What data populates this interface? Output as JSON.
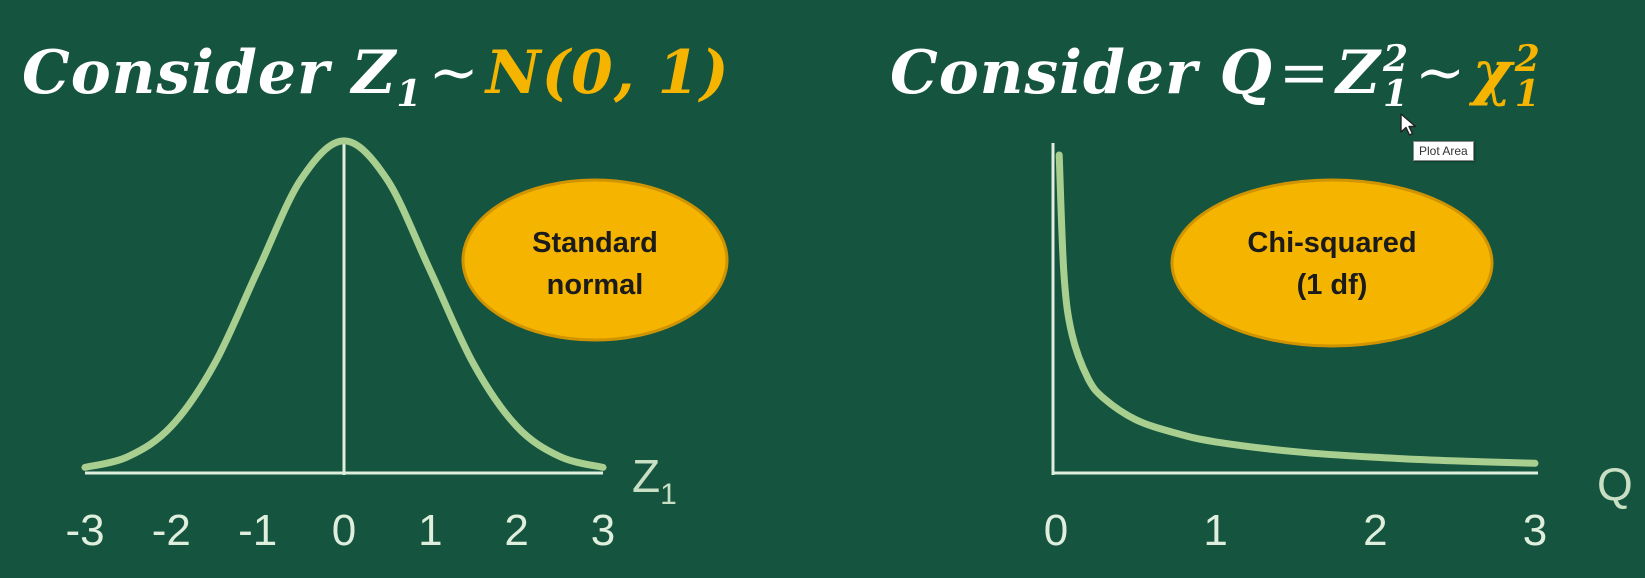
{
  "titles": {
    "left": {
      "prefix": "Consider ",
      "var": "Z",
      "sub": "1",
      "op": "~",
      "dist": "N(0, 1)"
    },
    "right": {
      "prefix": "Consider ",
      "var": "Q",
      "eq": "=",
      "z": "Z",
      "sup": "2",
      "sub": "1",
      "op": "~",
      "chi": "χ",
      "chi_sup": "2",
      "chi_sub": "1"
    }
  },
  "tooltip": {
    "text": "Plot Area"
  },
  "icons": {
    "cursor": "cursor-arrow-icon"
  },
  "colors": {
    "background": "#15543f",
    "curve": "#a8cf8f",
    "axis": "#dfeedd",
    "accent": "#f5b400",
    "label_fill": "#f5b400"
  },
  "chart_data": [
    {
      "type": "line",
      "x": [
        -3,
        -2.5,
        -2,
        -1.5,
        -1,
        -0.5,
        0,
        0.5,
        1,
        1.5,
        2,
        2.5,
        3
      ],
      "series": [
        {
          "values": [
            0.0044,
            0.0175,
            0.054,
            0.1295,
            0.242,
            0.352,
            0.3989,
            0.352,
            0.242,
            0.1295,
            0.054,
            0.0175,
            0.0044
          ]
        }
      ],
      "x_ticks": [
        "-3",
        "-2",
        "-1",
        "0",
        "1",
        "2",
        "3"
      ],
      "xlim": [
        -3,
        3
      ],
      "ylim": [
        0,
        0.4
      ],
      "xlabel": {
        "base": "Z",
        "sub": "1"
      },
      "annotation": {
        "lines": [
          "Standard",
          "normal"
        ]
      },
      "grid": false
    },
    {
      "type": "line",
      "x": [
        0.02,
        0.05,
        0.1,
        0.2,
        0.3,
        0.5,
        0.75,
        1,
        1.5,
        2,
        2.5,
        3
      ],
      "series": [
        {
          "values": [
            2.8,
            1.73,
            1.2,
            0.81,
            0.63,
            0.44,
            0.32,
            0.242,
            0.154,
            0.104,
            0.072,
            0.051
          ]
        }
      ],
      "x_ticks": [
        "0",
        "1",
        "2",
        "3"
      ],
      "xlim": [
        0,
        3
      ],
      "ylim": [
        0,
        2.8
      ],
      "xlabel": {
        "base": "Q"
      },
      "annotation": {
        "lines": [
          "Chi-squared",
          "(1 df)"
        ]
      },
      "grid": false
    }
  ]
}
